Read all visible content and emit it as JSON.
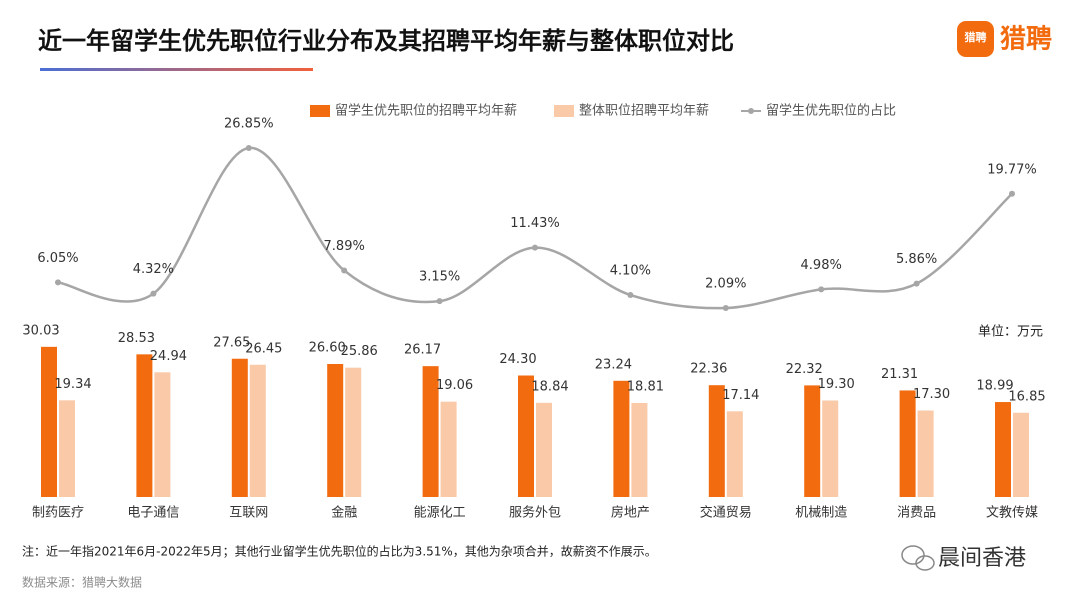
{
  "chart_data": {
    "type": "bar",
    "title": "近一年留学生优先职位行业分布及其招聘平均年薪与整体职位对比",
    "logo": "猎聘",
    "unit_label": "单位：万元",
    "note": "注：近一年指2021年6月-2022年5月；其他行业留学生优先职位的占比为3.51%，其他为杂项合并，故薪资不作展示。",
    "source": "数据来源：猎聘大数据",
    "watermark": "晨间香港",
    "categories": [
      "制药医疗",
      "电子通信",
      "互联网",
      "金融",
      "能源化工",
      "服务外包",
      "房地产",
      "交通贸易",
      "机械制造",
      "消费品",
      "文教传媒"
    ],
    "ylim": [
      0,
      30
    ],
    "y2lim": [
      0,
      28
    ],
    "legend": "top",
    "series": [
      {
        "name": "留学生优先职位的招聘平均年薪",
        "color": "#f26b0f",
        "values": [
          30.03,
          28.53,
          27.65,
          26.6,
          26.17,
          24.3,
          23.24,
          22.36,
          22.32,
          21.31,
          18.99
        ],
        "value_labels": [
          "30.03",
          "28.53",
          "27.65",
          "26.60",
          "26.17",
          "24.30",
          "23.24",
          "22.36",
          "22.32",
          "21.31",
          "18.99"
        ]
      },
      {
        "name": "整体职位招聘平均年薪",
        "color": "#f9c9a8",
        "values": [
          19.34,
          24.94,
          26.45,
          25.86,
          19.06,
          18.84,
          18.81,
          17.14,
          19.3,
          17.3,
          16.85
        ],
        "value_labels": [
          "19.34",
          "24.94",
          "26.45",
          "25.86",
          "19.06",
          "18.84",
          "18.81",
          "17.14",
          "19.30",
          "17.30",
          "16.85"
        ]
      },
      {
        "name": "留学生优先职位的占比",
        "type": "line",
        "axis": "y2",
        "color": "#a6a6a6",
        "values": [
          6.05,
          4.32,
          26.85,
          7.89,
          3.15,
          11.43,
          4.1,
          2.09,
          4.98,
          5.86,
          19.77
        ],
        "value_labels": [
          "6.05%",
          "4.32%",
          "26.85%",
          "7.89%",
          "3.15%",
          "11.43%",
          "4.10%",
          "2.09%",
          "4.98%",
          "5.86%",
          "19.77%"
        ]
      }
    ]
  }
}
